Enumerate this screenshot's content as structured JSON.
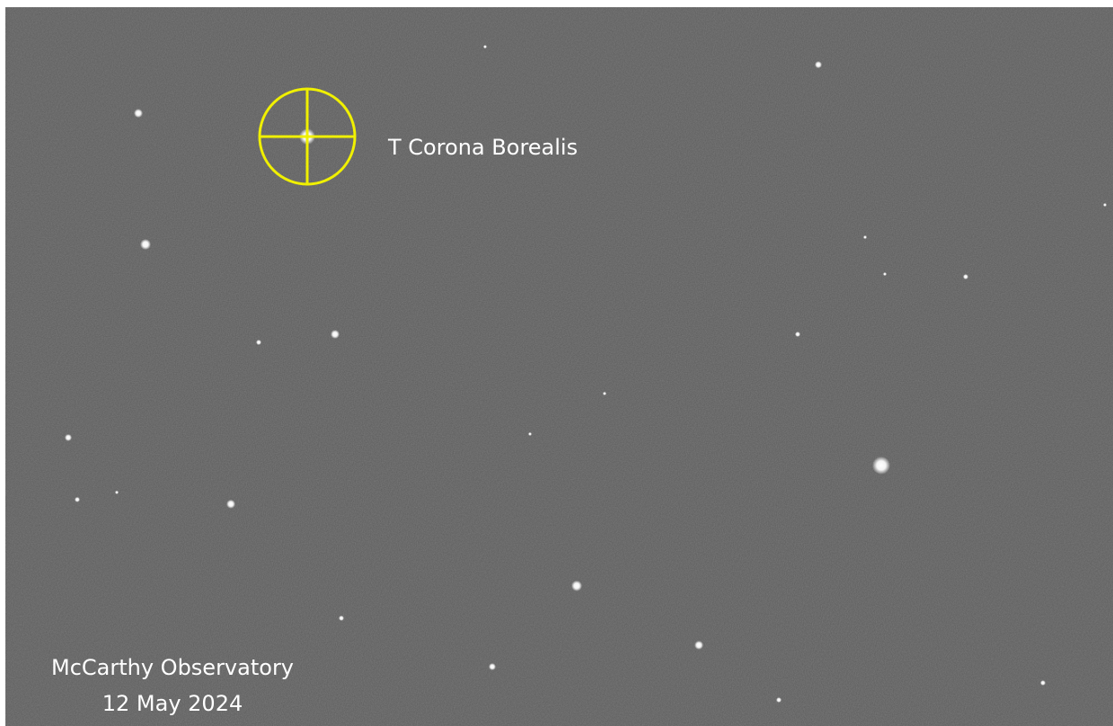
{
  "target_label": "T Corona Borealis",
  "credit": {
    "observatory": "McCarthy Observatory",
    "date": "12 May 2024"
  }
}
